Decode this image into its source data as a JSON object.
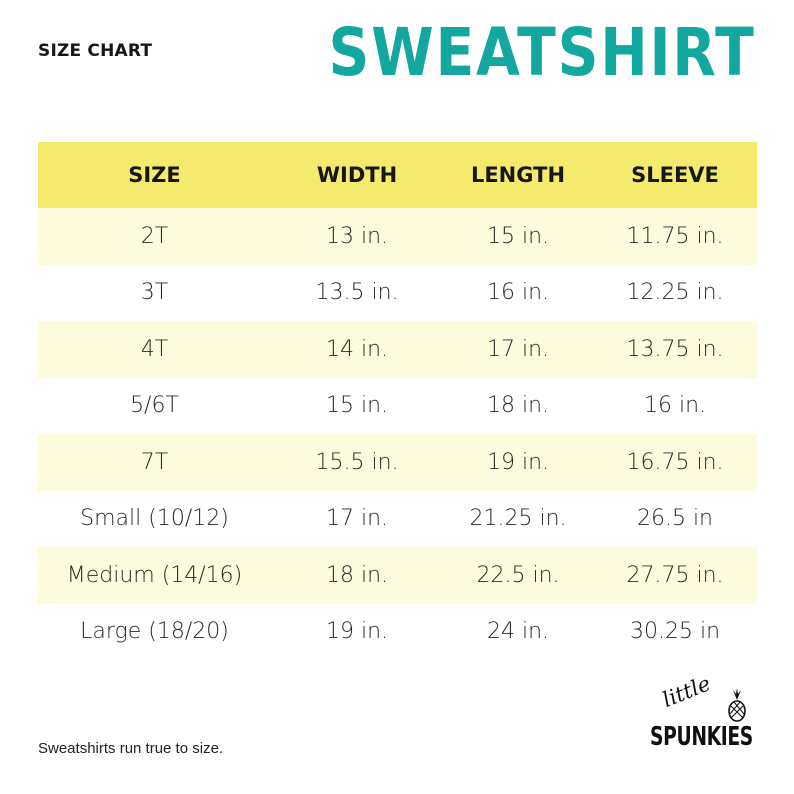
{
  "header": {
    "label": "SIZE CHART",
    "title": "SWEATSHIRT"
  },
  "colors": {
    "title": "#12a8a0",
    "header_row": "#f4ea6e",
    "stripe_row": "#fdfbdd",
    "plain_row": "#ffffff"
  },
  "table": {
    "columns": [
      "SIZE",
      "WIDTH",
      "LENGTH",
      "SLEEVE"
    ],
    "rows": [
      [
        "2T",
        "13 in.",
        "15 in.",
        "11.75 in."
      ],
      [
        "3T",
        "13.5 in.",
        "16 in.",
        "12.25 in."
      ],
      [
        "4T",
        "14 in.",
        "17 in.",
        "13.75 in."
      ],
      [
        "5/6T",
        "15 in.",
        "18 in.",
        "16 in."
      ],
      [
        "7T",
        "15.5 in.",
        "19 in.",
        "16.75 in."
      ],
      [
        "Small (10/12)",
        "17 in.",
        "21.25 in.",
        "26.5 in"
      ],
      [
        "Medium (14/16)",
        "18 in.",
        "22.5 in.",
        "27.75 in."
      ],
      [
        "Large (18/20)",
        "19 in.",
        "24 in.",
        "30.25 in"
      ]
    ]
  },
  "footer": {
    "note": "Sweatshirts run true to size.",
    "logo_script": "little",
    "logo_brand": "SPUNKIES",
    "logo_icon": "pineapple-icon"
  }
}
